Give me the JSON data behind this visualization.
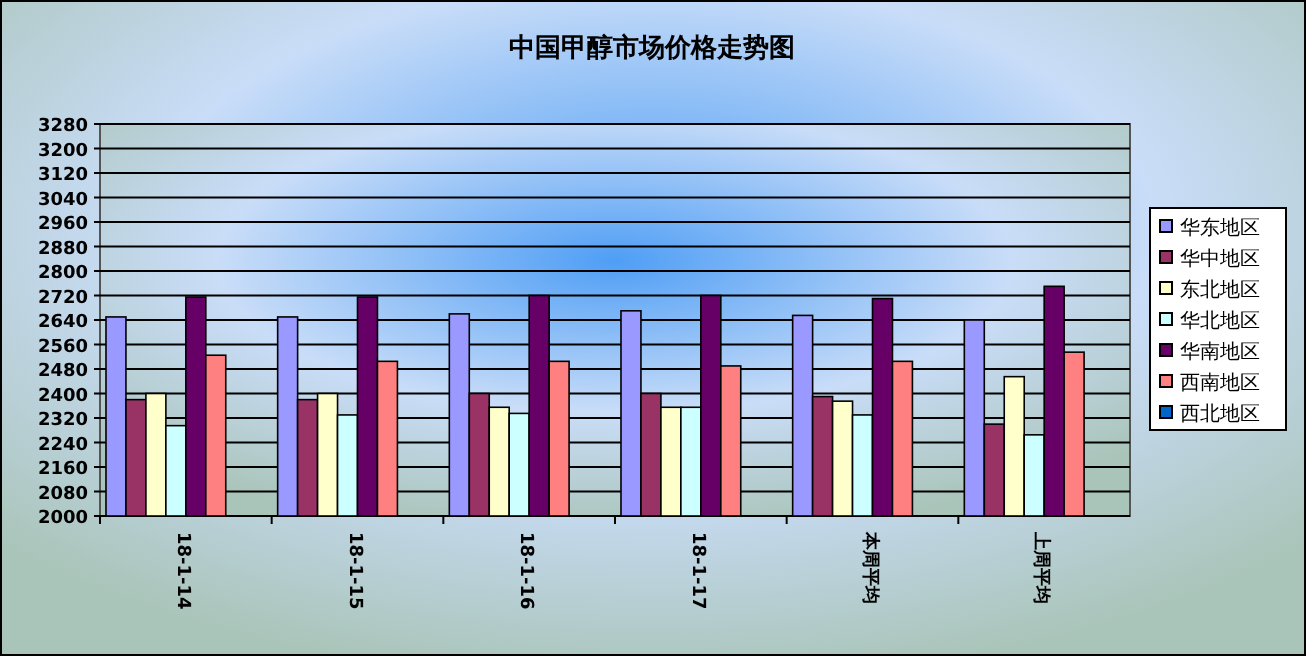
{
  "chart_data": {
    "type": "bar",
    "title": "中国甲醇市场价格走势图",
    "categories": [
      "18-1-14",
      "18-1-15",
      "18-1-16",
      "18-1-17",
      "本周平均",
      "上周平均"
    ],
    "series": [
      {
        "name": "华东地区",
        "color": "#9999ff",
        "values": [
          2650,
          2650,
          2660,
          2670,
          2655,
          2640
        ]
      },
      {
        "name": "华中地区",
        "color": "#993366",
        "values": [
          2380,
          2380,
          2400,
          2400,
          2390,
          2300
        ]
      },
      {
        "name": "东北地区",
        "color": "#ffffcc",
        "values": [
          2400,
          2400,
          2355,
          2355,
          2375,
          2455
        ]
      },
      {
        "name": "华北地区",
        "color": "#ccffff",
        "values": [
          2295,
          2330,
          2335,
          2355,
          2330,
          2265
        ]
      },
      {
        "name": "华南地区",
        "color": "#660066",
        "values": [
          2715,
          2715,
          2720,
          2720,
          2710,
          2750
        ]
      },
      {
        "name": "西南地区",
        "color": "#ff8080",
        "values": [
          2525,
          2505,
          2505,
          2490,
          2505,
          2535
        ]
      },
      {
        "name": "西北地区",
        "color": "#0066cc",
        "values": [
          null,
          null,
          null,
          null,
          null,
          null
        ]
      }
    ],
    "ylim": [
      2000,
      3280
    ],
    "yticks": [
      2000,
      2080,
      2160,
      2240,
      2320,
      2400,
      2480,
      2560,
      2640,
      2720,
      2800,
      2880,
      2960,
      3040,
      3120,
      3200,
      3280
    ],
    "grid": "y",
    "legend": "right"
  }
}
